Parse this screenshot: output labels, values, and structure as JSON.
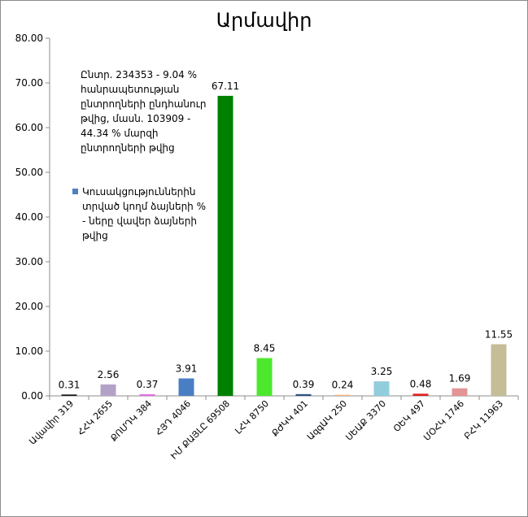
{
  "chart_data": {
    "type": "bar",
    "title": "Արմավիր",
    "categories": [
      "Ավավիր 319",
      "ՀՀԿ 2655",
      "ՔՈՄԴԿ 384",
      "ՀՅԴ 4046",
      "ԻՄ ՔԱՅԼԸ 69508",
      "ԼՀԿ 8750",
      "ՔԺԿԿ 401",
      "ԱզգԱԿ 250",
      "ՍԵԱՔ 3370",
      "ՕԵԿ 497",
      "ՄՕՀԿ 1746",
      "ԲՀԿ 11963"
    ],
    "values": [
      0.31,
      2.56,
      0.37,
      3.91,
      67.11,
      8.45,
      0.39,
      0.24,
      3.25,
      0.48,
      1.69,
      11.55
    ],
    "value_labels": [
      "0.31",
      "2.56",
      "0.37",
      "3.91",
      "67.11",
      "8.45",
      "0.39",
      "0.24",
      "3.25",
      "0.48",
      "1.69",
      "11.55"
    ],
    "colors": [
      "#1a1a1a",
      "#b3a2c7",
      "#e36ee3",
      "#4a7ec4",
      "#008000",
      "#4de82e",
      "#2e4f8a",
      "#f2b27a",
      "#92cddc",
      "#e01f1f",
      "#e39494",
      "#c4bd97"
    ],
    "ylim": [
      0,
      80
    ],
    "yticks": [
      "0.00",
      "10.00",
      "20.00",
      "30.00",
      "40.00",
      "50.00",
      "60.00",
      "70.00",
      "80.00"
    ],
    "grid": false,
    "annotation": "Ընտր. 234353 - 9.04 % հանրապետության ընտրողների ընդհանուր թվից, մասն. 103909 - 44.34 % մարզի ընտրողների թվից",
    "legend": {
      "label": "Կուսակցություններին տրված կողմ ձայների % - ները վավեր ձայների թվից",
      "color": "#4f81bd",
      "position": "left"
    }
  }
}
